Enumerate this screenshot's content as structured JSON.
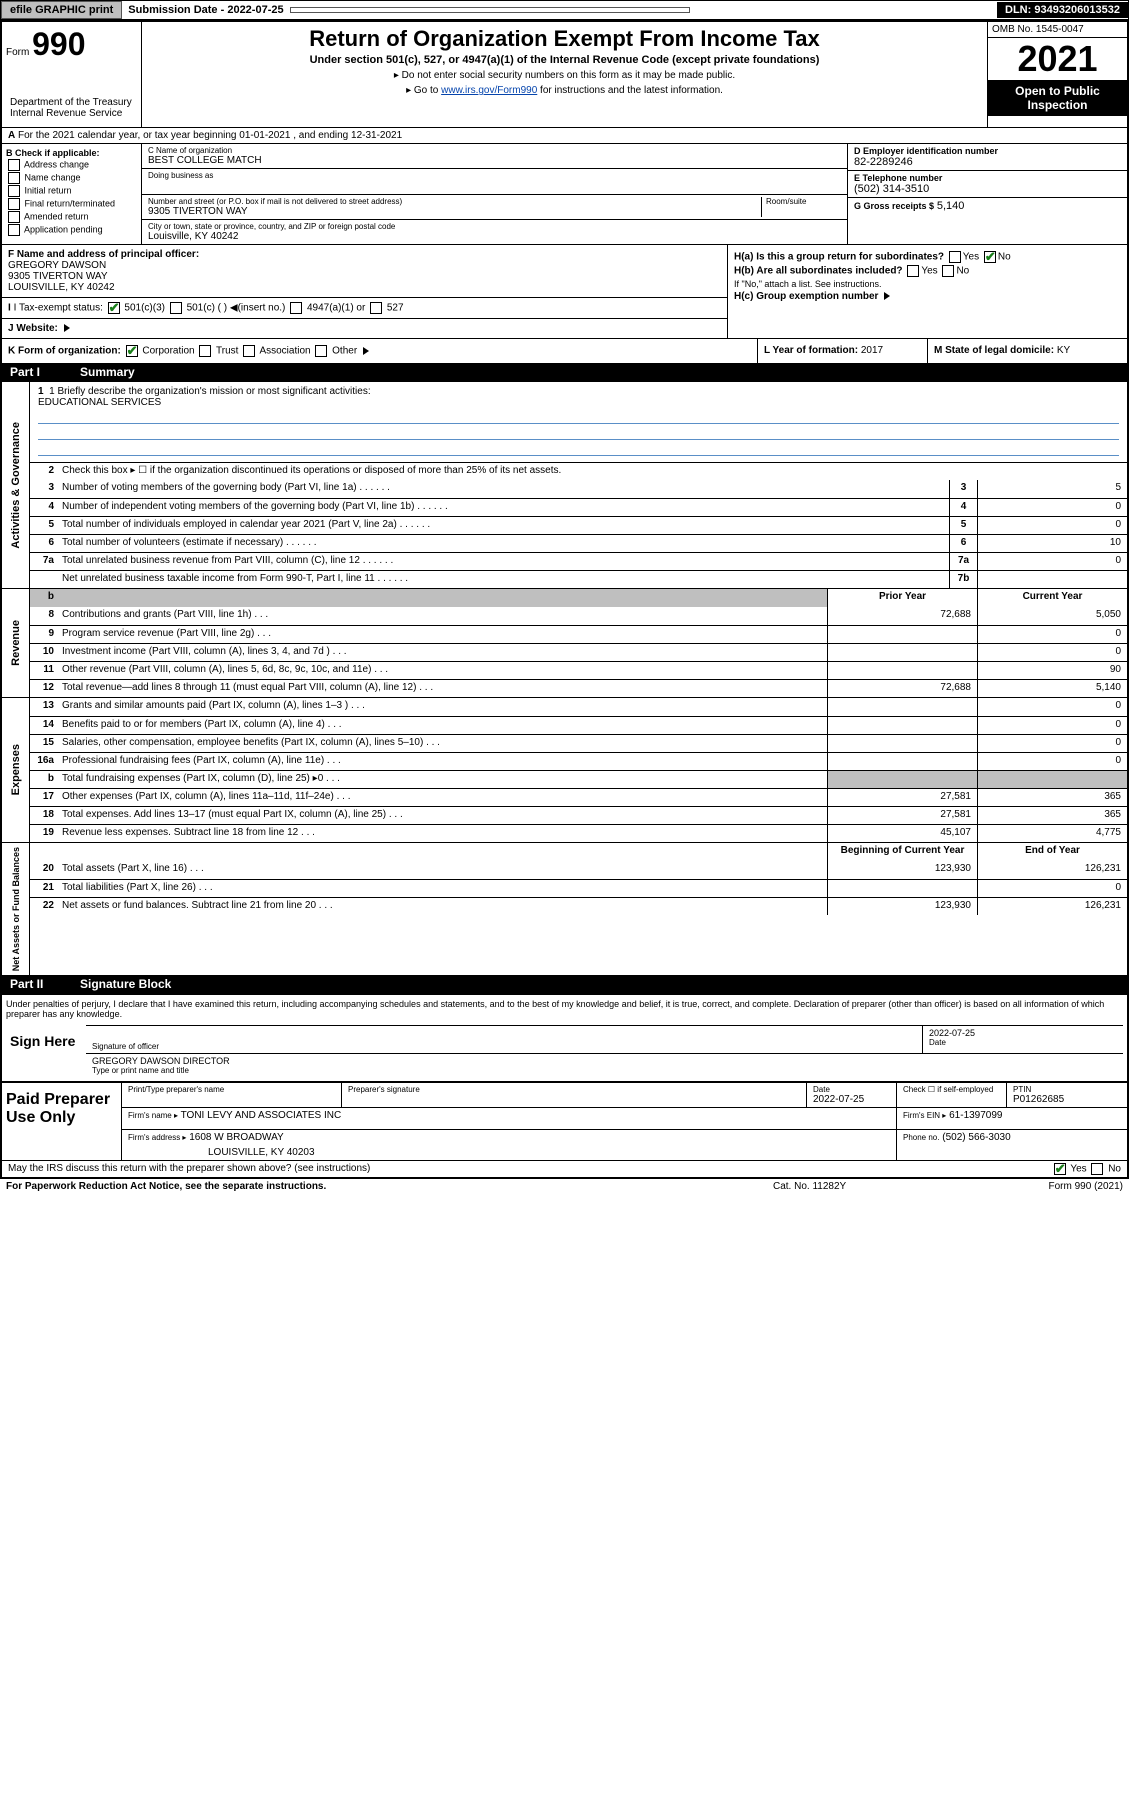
{
  "topbar": {
    "efile": "efile GRAPHIC print",
    "subdate_label": "Submission Date - ",
    "subdate": "2022-07-25",
    "dln": "DLN: 93493206013532"
  },
  "header": {
    "form_prefix": "Form",
    "form_num": "990",
    "title": "Return of Organization Exempt From Income Tax",
    "sub": "Under section 501(c), 527, or 4947(a)(1) of the Internal Revenue Code (except private foundations)",
    "instr1": "Do not enter social security numbers on this form as it may be made public.",
    "instr2_pre": "Go to ",
    "instr2_link": "www.irs.gov/Form990",
    "instr2_post": " for instructions and the latest information.",
    "omb": "OMB No. 1545-0047",
    "year": "2021",
    "inspect": "Open to Public Inspection",
    "dept": "Department of the Treasury\nInternal Revenue Service"
  },
  "sectionA": "For the 2021 calendar year, or tax year beginning 01-01-2021   , and ending 12-31-2021",
  "colB": {
    "label": "B Check if applicable:",
    "opts": [
      "Address change",
      "Name change",
      "Initial return",
      "Final return/terminated",
      "Amended return",
      "Application pending"
    ]
  },
  "colC": {
    "name_label": "C Name of organization",
    "name": "BEST COLLEGE MATCH",
    "dba_label": "Doing business as",
    "addr_label": "Number and street (or P.O. box if mail is not delivered to street address)",
    "room_label": "Room/suite",
    "addr": "9305 TIVERTON WAY",
    "city_label": "City or town, state or province, country, and ZIP or foreign postal code",
    "city": "Louisville, KY  40242"
  },
  "colD": {
    "ein_label": "D Employer identification number",
    "ein": "82-2289246",
    "tel_label": "E Telephone number",
    "tel": "(502) 314-3510",
    "gross_label": "G Gross receipts $",
    "gross": "5,140"
  },
  "rowF": {
    "f_label": "F  Name and address of principal officer:",
    "f_name": "GREGORY DAWSON",
    "f_addr1": "9305 TIVERTON WAY",
    "f_addr2": "LOUISVILLE, KY  40242",
    "ha": "H(a)  Is this a group return for subordinates?",
    "ha_yes": "Yes",
    "ha_no": "No",
    "hb": "H(b)  Are all subordinates included?",
    "hb_yes": "Yes",
    "hb_no": "No",
    "hb_note": "If \"No,\" attach a list. See instructions.",
    "hc": "H(c)  Group exemption number"
  },
  "rowI": {
    "label": "I   Tax-exempt status:",
    "opts": [
      "501(c)(3)",
      "501(c) (  )",
      "(insert no.)",
      "4947(a)(1) or",
      "527"
    ]
  },
  "rowJ": "J  Website:",
  "rowK": {
    "label": "K Form of organization:",
    "opts": [
      "Corporation",
      "Trust",
      "Association",
      "Other"
    ],
    "l_label": "L Year of formation:",
    "l_val": "2017",
    "m_label": "M State of legal domicile:",
    "m_val": "KY"
  },
  "part1": {
    "num": "Part I",
    "title": "Summary"
  },
  "gov": {
    "title": "Activities & Governance",
    "l1": "1  Briefly describe the organization's mission or most significant activities:",
    "mission": "EDUCATIONAL SERVICES",
    "l2": "Check this box ▸ ☐  if the organization discontinued its operations or disposed of more than 25% of its net assets.",
    "lines": [
      {
        "n": "3",
        "t": "Number of voting members of the governing body (Part VI, line 1a)",
        "b": "3",
        "v": "5"
      },
      {
        "n": "4",
        "t": "Number of independent voting members of the governing body (Part VI, line 1b)",
        "b": "4",
        "v": "0"
      },
      {
        "n": "5",
        "t": "Total number of individuals employed in calendar year 2021 (Part V, line 2a)",
        "b": "5",
        "v": "0"
      },
      {
        "n": "6",
        "t": "Total number of volunteers (estimate if necessary)",
        "b": "6",
        "v": "10"
      },
      {
        "n": "7a",
        "t": "Total unrelated business revenue from Part VIII, column (C), line 12",
        "b": "7a",
        "v": "0"
      },
      {
        "n": "",
        "t": "Net unrelated business taxable income from Form 990-T, Part I, line 11",
        "b": "7b",
        "v": ""
      }
    ]
  },
  "rev": {
    "title": "Revenue",
    "hdr_prior": "Prior Year",
    "hdr_curr": "Current Year",
    "lines": [
      {
        "n": "8",
        "t": "Contributions and grants (Part VIII, line 1h)",
        "p": "72,688",
        "c": "5,050"
      },
      {
        "n": "9",
        "t": "Program service revenue (Part VIII, line 2g)",
        "p": "",
        "c": "0"
      },
      {
        "n": "10",
        "t": "Investment income (Part VIII, column (A), lines 3, 4, and 7d )",
        "p": "",
        "c": "0"
      },
      {
        "n": "11",
        "t": "Other revenue (Part VIII, column (A), lines 5, 6d, 8c, 9c, 10c, and 11e)",
        "p": "",
        "c": "90"
      },
      {
        "n": "12",
        "t": "Total revenue—add lines 8 through 11 (must equal Part VIII, column (A), line 12)",
        "p": "72,688",
        "c": "5,140"
      }
    ]
  },
  "exp": {
    "title": "Expenses",
    "lines": [
      {
        "n": "13",
        "t": "Grants and similar amounts paid (Part IX, column (A), lines 1–3 )",
        "p": "",
        "c": "0"
      },
      {
        "n": "14",
        "t": "Benefits paid to or for members (Part IX, column (A), line 4)",
        "p": "",
        "c": "0"
      },
      {
        "n": "15",
        "t": "Salaries, other compensation, employee benefits (Part IX, column (A), lines 5–10)",
        "p": "",
        "c": "0"
      },
      {
        "n": "16a",
        "t": "Professional fundraising fees (Part IX, column (A), line 11e)",
        "p": "",
        "c": "0"
      },
      {
        "n": "b",
        "t": "Total fundraising expenses (Part IX, column (D), line 25) ▸0",
        "p": "shaded",
        "c": "shaded"
      },
      {
        "n": "17",
        "t": "Other expenses (Part IX, column (A), lines 11a–11d, 11f–24e)",
        "p": "27,581",
        "c": "365"
      },
      {
        "n": "18",
        "t": "Total expenses. Add lines 13–17 (must equal Part IX, column (A), line 25)",
        "p": "27,581",
        "c": "365"
      },
      {
        "n": "19",
        "t": "Revenue less expenses. Subtract line 18 from line 12",
        "p": "45,107",
        "c": "4,775"
      }
    ]
  },
  "net": {
    "title": "Net Assets or Fund Balances",
    "hdr_begin": "Beginning of Current Year",
    "hdr_end": "End of Year",
    "lines": [
      {
        "n": "20",
        "t": "Total assets (Part X, line 16)",
        "p": "123,930",
        "c": "126,231"
      },
      {
        "n": "21",
        "t": "Total liabilities (Part X, line 26)",
        "p": "",
        "c": "0"
      },
      {
        "n": "22",
        "t": "Net assets or fund balances. Subtract line 21 from line 20",
        "p": "123,930",
        "c": "126,231"
      }
    ]
  },
  "part2": {
    "num": "Part II",
    "title": "Signature Block"
  },
  "sig": {
    "decl": "Under penalties of perjury, I declare that I have examined this return, including accompanying schedules and statements, and to the best of my knowledge and belief, it is true, correct, and complete. Declaration of preparer (other than officer) is based on all information of which preparer has any knowledge.",
    "sign_here": "Sign Here",
    "sig_officer": "Signature of officer",
    "date": "Date",
    "date_val": "2022-07-25",
    "name_title": "GREGORY DAWSON  DIRECTOR",
    "name_label": "Type or print name and title"
  },
  "paid": {
    "title": "Paid Preparer Use Only",
    "prep_name_label": "Print/Type preparer's name",
    "prep_sig_label": "Preparer's signature",
    "date_label": "Date",
    "date_val": "2022-07-25",
    "check_label": "Check ☐ if self-employed",
    "ptin_label": "PTIN",
    "ptin": "P01262685",
    "firm_name_label": "Firm's name ▸",
    "firm_name": "TONI LEVY AND ASSOCIATES INC",
    "firm_ein_label": "Firm's EIN ▸",
    "firm_ein": "61-1397099",
    "firm_addr_label": "Firm's address ▸",
    "firm_addr1": "1608 W BROADWAY",
    "firm_addr2": "LOUISVILLE, KY  40203",
    "phone_label": "Phone no.",
    "phone": "(502) 566-3030"
  },
  "footer": {
    "discuss": "May the IRS discuss this return with the preparer shown above? (see instructions)",
    "yes": "Yes",
    "no": "No",
    "pra": "For Paperwork Reduction Act Notice, see the separate instructions.",
    "cat": "Cat. No. 11282Y",
    "form": "Form 990 (2021)"
  }
}
